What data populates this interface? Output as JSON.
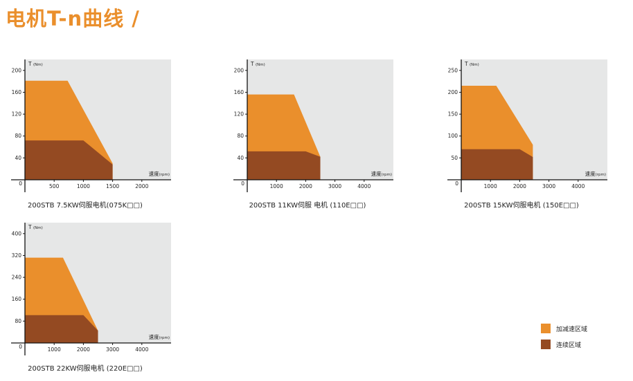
{
  "title": "电机T-n曲线 /",
  "colors": {
    "accel": "#ea8f2c",
    "continuous": "#944a22",
    "plot_bg": "#e6e7e7",
    "axis": "#111111"
  },
  "legend": [
    {
      "label": "加减速区域",
      "color": "#ea8f2c"
    },
    {
      "label": "连续区域",
      "color": "#944a22"
    }
  ],
  "chart_data": [
    {
      "type": "area",
      "caption": "200STB 7.5KW伺服电机(075K□□)",
      "ylabel": "T",
      "ylabel_unit": "(Nm)",
      "xlabel": "速度",
      "xlabel_unit": "(rpm)",
      "xlim": [
        0,
        2500
      ],
      "ylim": [
        0,
        220
      ],
      "x_ticks": [
        500,
        1000,
        1500,
        2000
      ],
      "y_ticks": [
        40,
        80,
        120,
        160,
        200
      ],
      "origin_label": "0",
      "series": [
        {
          "key": "accel",
          "x": [
            0,
            0,
            730,
            1500,
            1500
          ],
          "y": [
            0,
            181,
            181,
            30,
            0
          ]
        },
        {
          "key": "continuous",
          "x": [
            0,
            0,
            1000,
            1500,
            1500
          ],
          "y": [
            0,
            72,
            72,
            28,
            0
          ]
        }
      ]
    },
    {
      "type": "area",
      "caption": "200STB 11KW伺服 电机 (110E□□)",
      "ylabel": "T",
      "ylabel_unit": "(Nm)",
      "xlabel": "速度",
      "xlabel_unit": "(rpm)",
      "xlim": [
        0,
        5000
      ],
      "ylim": [
        0,
        220
      ],
      "x_ticks": [
        1000,
        2000,
        3000,
        4000
      ],
      "y_ticks": [
        40,
        80,
        120,
        160,
        200
      ],
      "origin_label": "0",
      "series": [
        {
          "key": "accel",
          "x": [
            0,
            0,
            1600,
            2500,
            2500
          ],
          "y": [
            0,
            156,
            156,
            42,
            0
          ]
        },
        {
          "key": "continuous",
          "x": [
            0,
            0,
            2000,
            2500,
            2500
          ],
          "y": [
            0,
            52,
            52,
            42,
            0
          ]
        }
      ]
    },
    {
      "type": "area",
      "caption": "200STB 15KW伺服电机 (150E□□)",
      "ylabel": "T",
      "ylabel_unit": "(Nm)",
      "xlabel": "速度",
      "xlabel_unit": "(rpm)",
      "xlim": [
        0,
        5000
      ],
      "ylim": [
        0,
        275
      ],
      "x_ticks": [
        1000,
        2000,
        3000,
        4000
      ],
      "y_ticks": [
        50,
        100,
        150,
        200,
        250
      ],
      "origin_label": "0",
      "series": [
        {
          "key": "accel",
          "x": [
            0,
            0,
            1200,
            2450,
            2450
          ],
          "y": [
            0,
            215,
            215,
            80,
            0
          ]
        },
        {
          "key": "continuous",
          "x": [
            0,
            0,
            2000,
            2450,
            2450
          ],
          "y": [
            0,
            70,
            70,
            52,
            0
          ]
        }
      ]
    },
    {
      "type": "area",
      "caption": "200STB 22KW伺服电机 (220E□□)",
      "ylabel": "T",
      "ylabel_unit": "(Nm)",
      "xlabel": "速度",
      "xlabel_unit": "(rpm)",
      "xlim": [
        0,
        5000
      ],
      "ylim": [
        0,
        440
      ],
      "x_ticks": [
        1000,
        2000,
        3000,
        4000
      ],
      "y_ticks": [
        80,
        160,
        240,
        320,
        400
      ],
      "origin_label": "0",
      "series": [
        {
          "key": "accel",
          "x": [
            0,
            0,
            1300,
            2500,
            2500
          ],
          "y": [
            0,
            312,
            312,
            45,
            0
          ]
        },
        {
          "key": "continuous",
          "x": [
            0,
            0,
            2000,
            2500,
            2500
          ],
          "y": [
            0,
            102,
            102,
            45,
            0
          ]
        }
      ]
    }
  ]
}
